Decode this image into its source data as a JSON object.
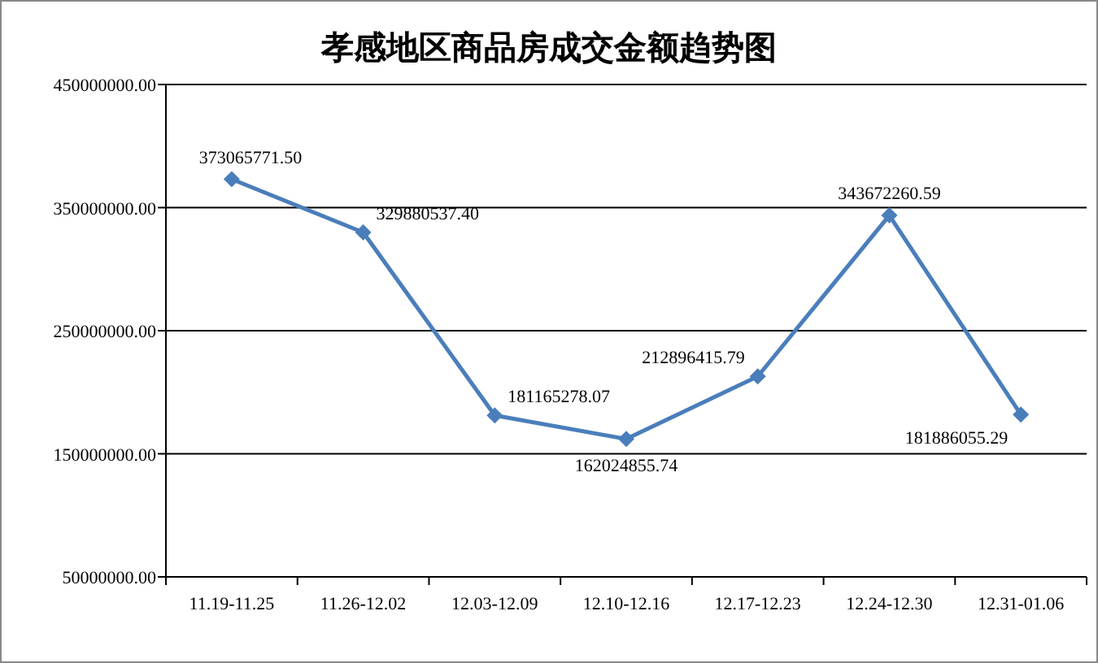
{
  "chart_data": {
    "type": "line",
    "title": "孝感地区商品房成交金额趋势图",
    "categories": [
      "11.19-11.25",
      "11.26-12.02",
      "12.03-12.09",
      "12.10-12.16",
      "12.17-12.23",
      "12.24-12.30",
      "12.31-01.06"
    ],
    "series": [
      {
        "color": "#4a7ebb",
        "values": [
          373065771.5,
          329880537.4,
          181165278.07,
          162024855.74,
          212896415.79,
          343672260.59,
          181886055.29
        ],
        "value_labels": [
          "373065771.50",
          "329880537.40",
          "181165278.07",
          "162024855.74",
          "212896415.79",
          "343672260.59",
          "181886055.29"
        ]
      }
    ],
    "ylim": [
      50000000,
      450000000
    ],
    "yticks": [
      {
        "value": 50000000,
        "label": "50000000.00"
      },
      {
        "value": 150000000,
        "label": "150000000.00"
      },
      {
        "value": 250000000,
        "label": "250000000.00"
      },
      {
        "value": 350000000,
        "label": "350000000.00"
      },
      {
        "value": 450000000,
        "label": "450000000.00"
      }
    ],
    "grid": "y",
    "marker": "diamond",
    "line_style": "solid"
  }
}
